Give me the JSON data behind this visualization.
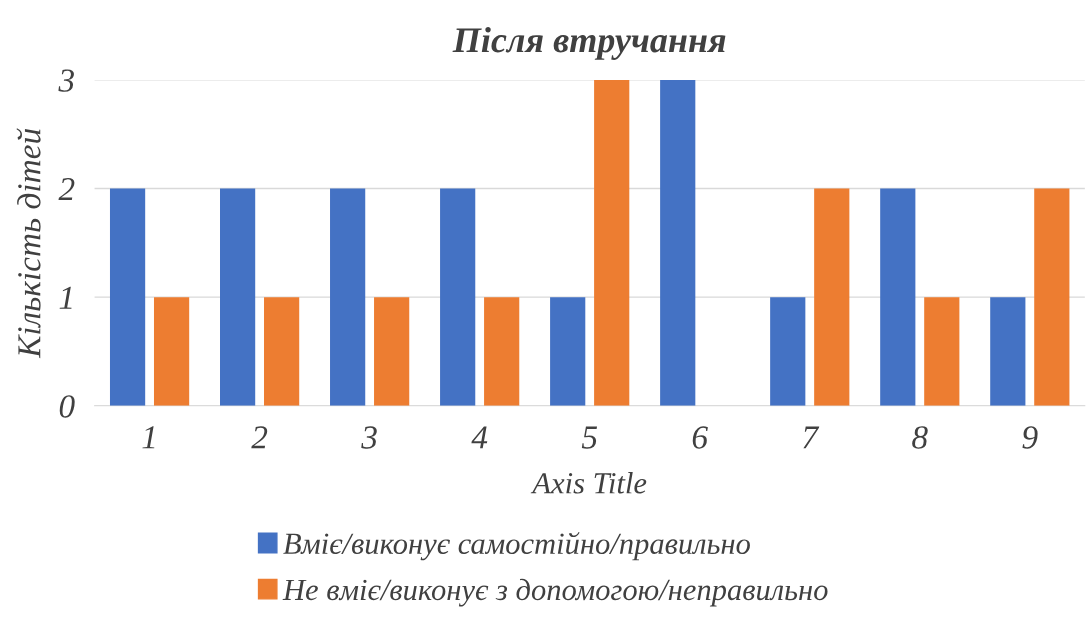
{
  "chart_data": {
    "type": "bar",
    "title": "Після втручання",
    "xlabel": "Axis Title",
    "ylabel": "Кількість дітей",
    "categories": [
      "1",
      "2",
      "3",
      "4",
      "5",
      "6",
      "7",
      "8",
      "9"
    ],
    "series": [
      {
        "name": "Вміє/виконує самостійно/правильно",
        "color": "#4472c4",
        "values": [
          2,
          2,
          2,
          2,
          1,
          3,
          1,
          2,
          1
        ]
      },
      {
        "name": "Не вміє/виконує з допомогою/неправильно",
        "color": "#ed7d31",
        "values": [
          1,
          1,
          1,
          1,
          3,
          0,
          2,
          1,
          2
        ]
      }
    ],
    "ylim": [
      0,
      3
    ],
    "yticks": [
      0,
      1,
      2,
      3
    ],
    "grid": "y",
    "legend": "bottom"
  }
}
